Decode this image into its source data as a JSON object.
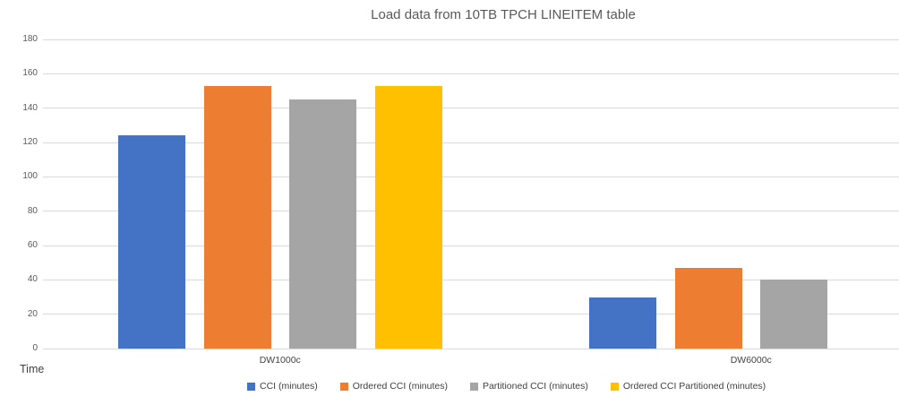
{
  "chart_data": {
    "type": "bar",
    "title": "Load data from 10TB TPCH LINEITEM table",
    "categories": [
      "DW1000c",
      "DW6000c"
    ],
    "series": [
      {
        "name": "CCI (minutes)",
        "color": "#4472C4",
        "values": [
          124,
          30
        ]
      },
      {
        "name": "Ordered CCI (minutes)",
        "color": "#ED7D31",
        "values": [
          153,
          47
        ]
      },
      {
        "name": "Partitioned CCI (minutes)",
        "color": "#A5A5A5",
        "values": [
          145,
          40
        ]
      },
      {
        "name": "Ordered CCI Partitioned (minutes)",
        "color": "#FFC000",
        "values": [
          153,
          null
        ]
      }
    ],
    "xlabel": "",
    "ylabel": "Time",
    "ylim": [
      0,
      180
    ],
    "ytick_step": 20,
    "yticks": [
      0,
      20,
      40,
      60,
      80,
      100,
      120,
      140,
      160,
      180
    ],
    "grid": true,
    "grid_color": "#D9D9D9",
    "legend_position": "bottom"
  }
}
